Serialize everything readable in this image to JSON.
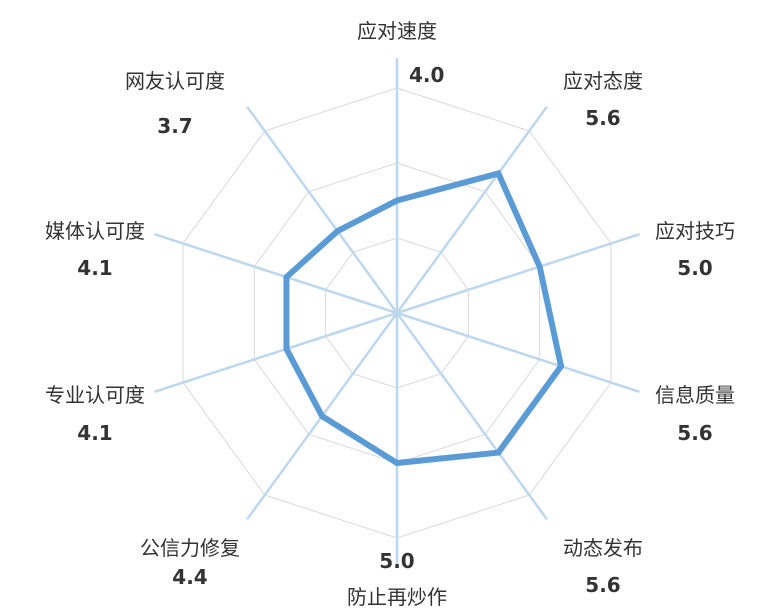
{
  "chart_data": {
    "type": "radar",
    "categories": [
      "应对速度",
      "应对态度",
      "应对技巧",
      "信息质量",
      "动态发布",
      "防止再炒作",
      "公信力修复",
      "专业认可度",
      "媒体认可度",
      "网友认可度"
    ],
    "values": [
      4.0,
      5.6,
      5.0,
      5.6,
      5.6,
      5.0,
      4.4,
      4.1,
      4.1,
      3.7
    ],
    "value_labels": [
      "4.0",
      "5.6",
      "5.0",
      "5.6",
      "5.6",
      "5.0",
      "4.4",
      "4.1",
      "4.1",
      "3.7"
    ],
    "rlim": [
      1,
      7
    ],
    "grid_levels": [
      3,
      5,
      7
    ],
    "grid": true,
    "colors": {
      "series": "#5B9BD5",
      "axis": "#BDD7EE",
      "grid": "#D9D9D9"
    }
  }
}
